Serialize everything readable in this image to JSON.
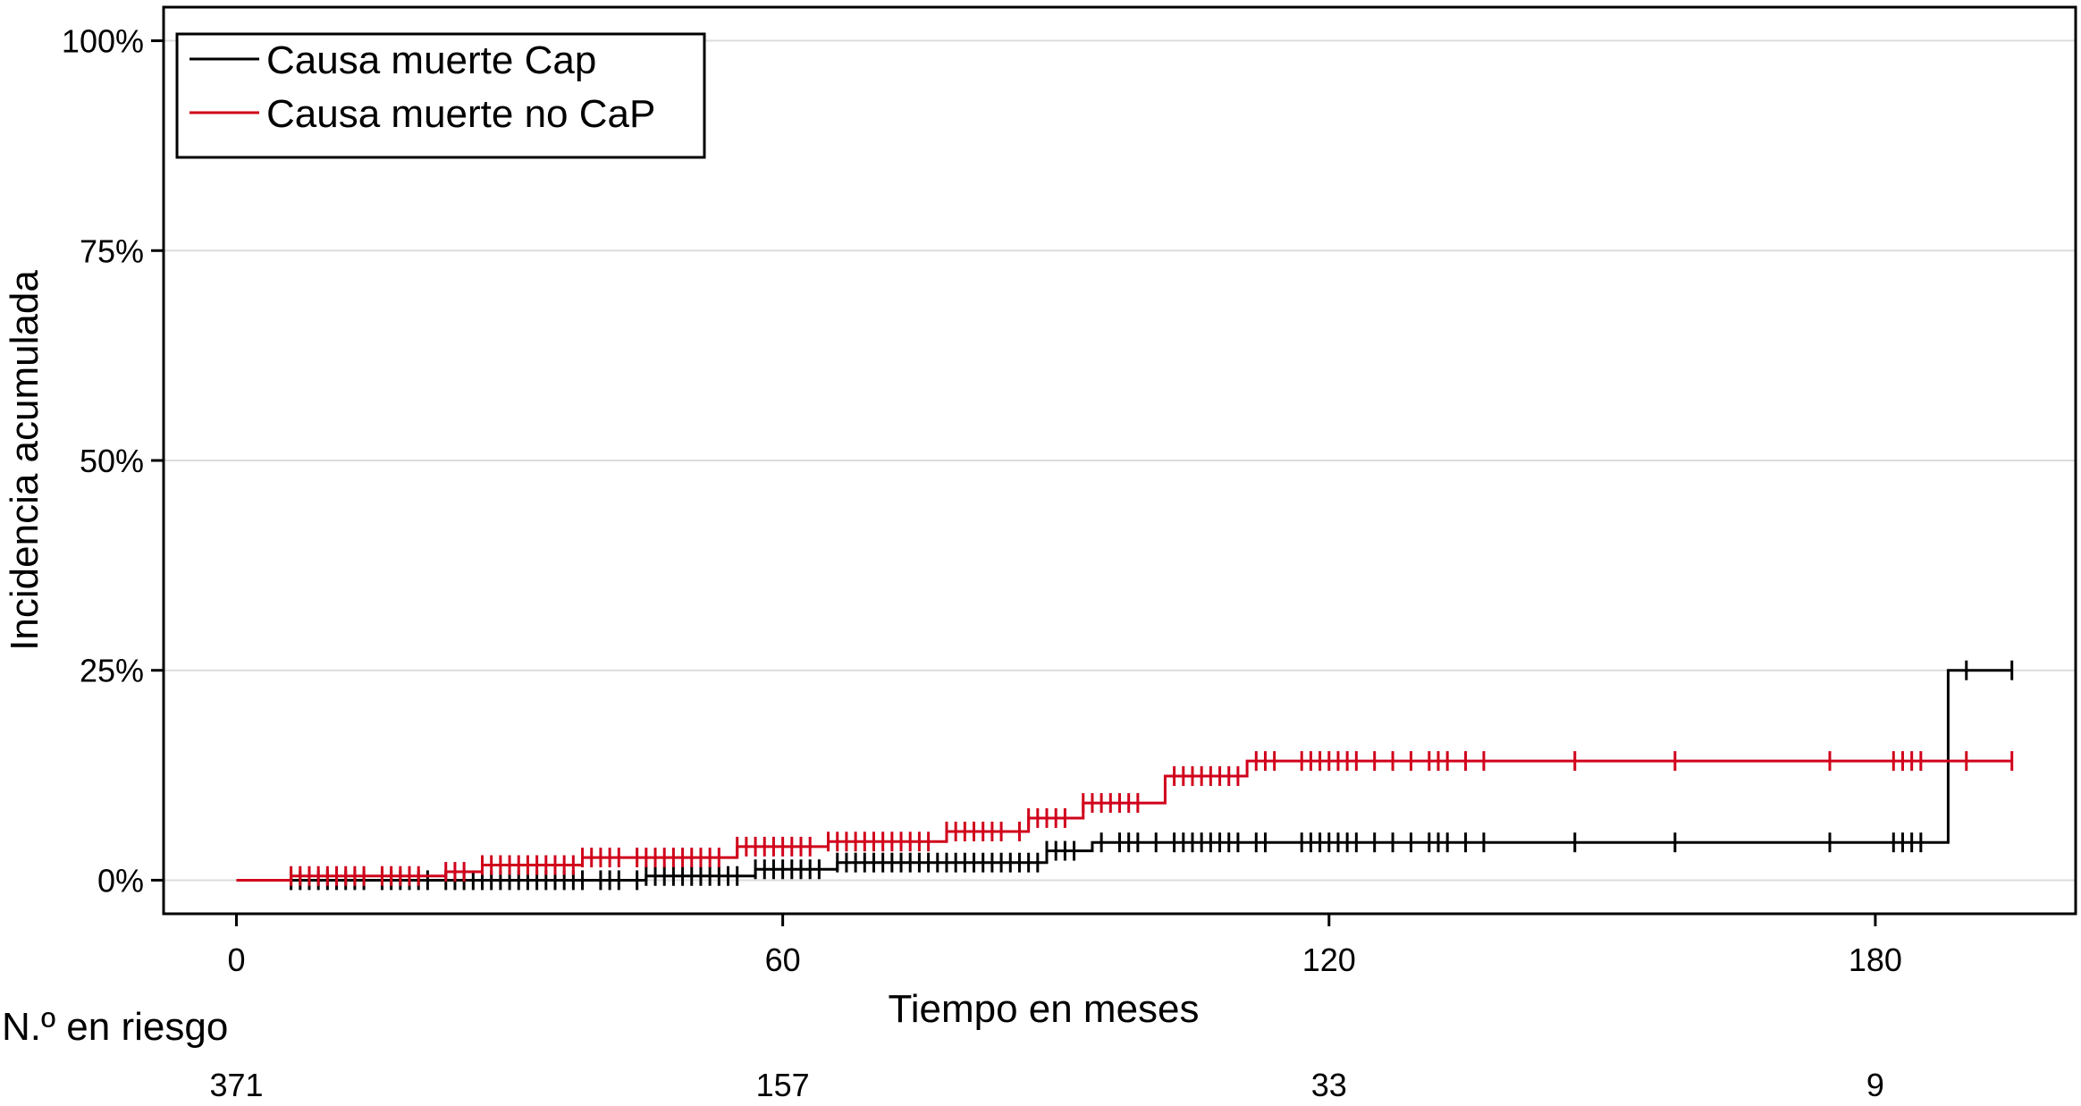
{
  "chart_data": {
    "type": "line",
    "ylabel": "Incidencia acumulada",
    "xlabel": "Tiempo en meses",
    "xlim": [
      -8,
      202
    ],
    "ylim": [
      -0.04,
      1.04
    ],
    "x_ticks": [
      0,
      60,
      120,
      180
    ],
    "x_tick_labels": [
      "0",
      "60",
      "120",
      "180"
    ],
    "y_ticks": [
      0,
      0.25,
      0.5,
      0.75,
      1.0
    ],
    "y_tick_labels": [
      "0%",
      "25%",
      "50%",
      "75%",
      "100%"
    ],
    "grid": "horizontal",
    "legend_position": "top-left",
    "series": [
      {
        "name": "Causa muerte Cap",
        "color": "#000000",
        "steps": [
          [
            0,
            0.0
          ],
          [
            45,
            0.005
          ],
          [
            57,
            0.013
          ],
          [
            66,
            0.021
          ],
          [
            89,
            0.035
          ],
          [
            94,
            0.045
          ],
          [
            188,
            0.045
          ],
          [
            188,
            0.25
          ],
          [
            195,
            0.25
          ]
        ],
        "censor": [
          6,
          7,
          8,
          9,
          10,
          11,
          12,
          13,
          14,
          16,
          17,
          18,
          19,
          20,
          21,
          23,
          24,
          25,
          26,
          27,
          28,
          29,
          30,
          31,
          32,
          33,
          34,
          35,
          36,
          37,
          38,
          40,
          41,
          42,
          44,
          45,
          46,
          47,
          48,
          49,
          50,
          51,
          52,
          53,
          54,
          55,
          57,
          58,
          59,
          60,
          61,
          62,
          63,
          64,
          66,
          67,
          68,
          69,
          70,
          71,
          72,
          73,
          74,
          75,
          76,
          77,
          78,
          79,
          80,
          81,
          82,
          83,
          84,
          85,
          86,
          87,
          88,
          89,
          90,
          91,
          92,
          95,
          97,
          98,
          99,
          101,
          103,
          104,
          105,
          106,
          107,
          108,
          109,
          110,
          112,
          113,
          117,
          118,
          119,
          120,
          121,
          122,
          123,
          125,
          127,
          129,
          131,
          132,
          133,
          135,
          137,
          147,
          158,
          175,
          182,
          183,
          184,
          185,
          190,
          195
        ]
      },
      {
        "name": "Causa muerte no CaP",
        "color": "#d0021b",
        "steps": [
          [
            0,
            0.0
          ],
          [
            6,
            0.005
          ],
          [
            23,
            0.01
          ],
          [
            27,
            0.018
          ],
          [
            38,
            0.027
          ],
          [
            55,
            0.04
          ],
          [
            65,
            0.046
          ],
          [
            78,
            0.058
          ],
          [
            87,
            0.074
          ],
          [
            93,
            0.092
          ],
          [
            102,
            0.124
          ],
          [
            111,
            0.142
          ],
          [
            195,
            0.142
          ]
        ],
        "censor": [
          6,
          7,
          8,
          9,
          10,
          11,
          12,
          13,
          14,
          16,
          17,
          18,
          19,
          20,
          23,
          24,
          25,
          27,
          28,
          29,
          30,
          31,
          32,
          33,
          34,
          35,
          36,
          37,
          38,
          39,
          40,
          41,
          42,
          44,
          45,
          46,
          47,
          48,
          49,
          50,
          51,
          52,
          53,
          55,
          56,
          57,
          58,
          59,
          60,
          61,
          62,
          63,
          65,
          66,
          67,
          68,
          69,
          70,
          71,
          72,
          73,
          74,
          75,
          76,
          78,
          79,
          80,
          81,
          82,
          83,
          84,
          86,
          87,
          88,
          89,
          90,
          91,
          93,
          94,
          95,
          96,
          97,
          98,
          99,
          103,
          104,
          105,
          106,
          107,
          108,
          109,
          110,
          112,
          113,
          114,
          117,
          118,
          119,
          120,
          121,
          122,
          123,
          125,
          127,
          129,
          131,
          132,
          133,
          135,
          137,
          147,
          158,
          175,
          182,
          183,
          184,
          185,
          190,
          195
        ]
      }
    ],
    "risk_table": {
      "label": "N.º en riesgo",
      "times": [
        0,
        60,
        120,
        180
      ],
      "values": [
        "371",
        "157",
        "33",
        "9"
      ]
    }
  }
}
